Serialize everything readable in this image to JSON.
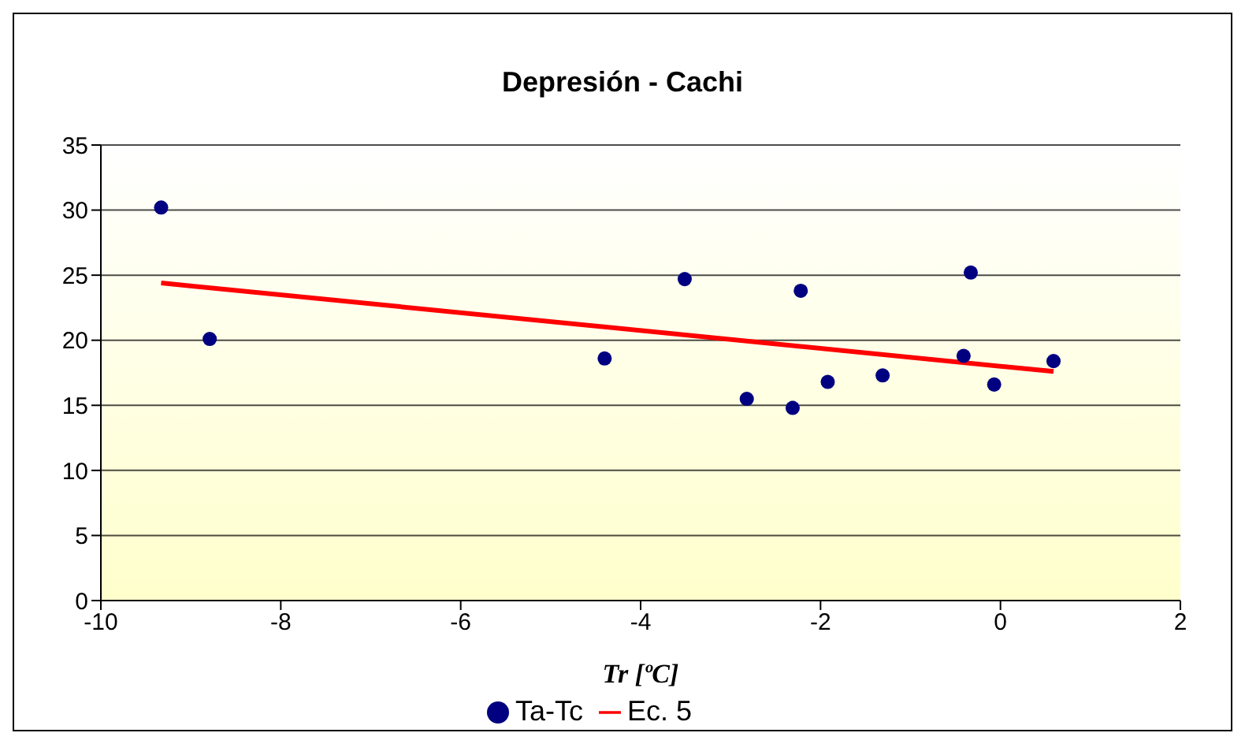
{
  "chart_data": {
    "type": "scatter",
    "title": "Depresión - Cachi",
    "xlabel": "Tr [ºC]",
    "xlim": [
      -10,
      2
    ],
    "xticks": [
      -10,
      -8,
      -6,
      -4,
      -2,
      0,
      2
    ],
    "ylim": [
      0,
      35
    ],
    "yticks": [
      0,
      5,
      10,
      15,
      20,
      25,
      30,
      35
    ],
    "grid": "y",
    "legend": "bottom",
    "series": [
      {
        "name": "Ta-Tc",
        "marker": "circle",
        "color": "#000080",
        "x": [
          -9.33,
          -8.79,
          -4.4,
          -3.51,
          -2.82,
          -2.31,
          -2.22,
          -1.92,
          -1.31,
          -0.41,
          -0.33,
          -0.07,
          0.59
        ],
        "values": [
          30.2,
          20.1,
          18.6,
          24.7,
          15.5,
          14.8,
          23.8,
          16.8,
          17.3,
          18.8,
          25.2,
          16.6,
          18.4
        ]
      },
      {
        "name": "Ec. 5",
        "type": "line",
        "color": "#ff0000",
        "x": [
          -9.33,
          0.59
        ],
        "values": [
          24.4,
          17.6
        ]
      }
    ]
  }
}
